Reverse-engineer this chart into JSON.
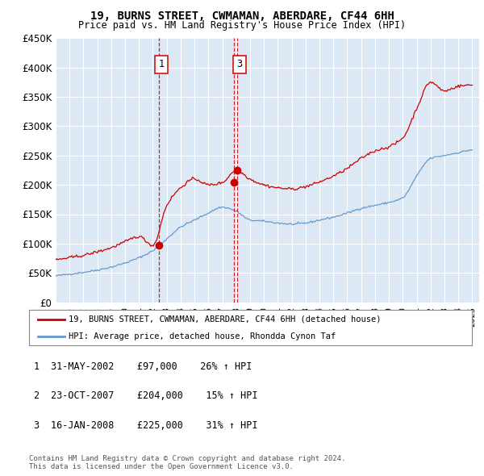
{
  "title": "19, BURNS STREET, CWMAMAN, ABERDARE, CF44 6HH",
  "subtitle": "Price paid vs. HM Land Registry's House Price Index (HPI)",
  "ylim": [
    0,
    450000
  ],
  "yticks": [
    0,
    50000,
    100000,
    150000,
    200000,
    250000,
    300000,
    350000,
    400000,
    450000
  ],
  "xlim_start": 1995.0,
  "xlim_end": 2025.5,
  "plot_bg_color": "#dce9f5",
  "grid_color": "#ffffff",
  "sale_dates": [
    2002.413,
    2007.813,
    2008.046
  ],
  "sale_prices": [
    97000,
    204000,
    225000
  ],
  "sale_labels": [
    "1",
    "2",
    "3"
  ],
  "show_box_on_chart": [
    true,
    false,
    true
  ],
  "legend_label_red": "19, BURNS STREET, CWMAMAN, ABERDARE, CF44 6HH (detached house)",
  "legend_label_blue": "HPI: Average price, detached house, Rhondda Cynon Taf",
  "table_rows": [
    [
      "1",
      "31-MAY-2002",
      "£97,000",
      "26% ↑ HPI"
    ],
    [
      "2",
      "23-OCT-2007",
      "£204,000",
      "15% ↑ HPI"
    ],
    [
      "3",
      "16-JAN-2008",
      "£225,000",
      "31% ↑ HPI"
    ]
  ],
  "footer_text": "Contains HM Land Registry data © Crown copyright and database right 2024.\nThis data is licensed under the Open Government Licence v3.0.",
  "red_color": "#cc0000",
  "blue_color": "#6699cc",
  "dashed_color": "#cc0000",
  "hpi_data": {
    "years": [
      1995,
      1996,
      1997,
      1998,
      1999,
      2000,
      2001,
      2002,
      2003,
      2004,
      2005,
      2006,
      2007,
      2008,
      2009,
      2010,
      2011,
      2012,
      2013,
      2014,
      2015,
      2016,
      2017,
      2018,
      2019,
      2020,
      2021,
      2022,
      2023,
      2024,
      2025
    ],
    "values": [
      45000,
      48000,
      51000,
      55000,
      60000,
      67000,
      76000,
      88000,
      108000,
      128000,
      140000,
      152000,
      162000,
      155000,
      140000,
      138000,
      135000,
      133000,
      135000,
      140000,
      145000,
      152000,
      160000,
      165000,
      170000,
      178000,
      215000,
      245000,
      250000,
      255000,
      260000
    ]
  },
  "prop_data": {
    "years": [
      1995,
      1996,
      1997,
      1998,
      1999,
      2000,
      2001,
      2002,
      2003,
      2004,
      2005,
      2006,
      2007,
      2008,
      2009,
      2010,
      2011,
      2012,
      2013,
      2014,
      2015,
      2016,
      2017,
      2018,
      2019,
      2020,
      2021,
      2022,
      2023,
      2024,
      2025
    ],
    "values": [
      72000,
      76000,
      80000,
      86000,
      93000,
      103000,
      112000,
      97000,
      165000,
      195000,
      210000,
      200000,
      204000,
      225000,
      210000,
      200000,
      195000,
      193000,
      197000,
      205000,
      215000,
      228000,
      245000,
      258000,
      265000,
      280000,
      330000,
      375000,
      360000,
      368000,
      370000
    ]
  }
}
